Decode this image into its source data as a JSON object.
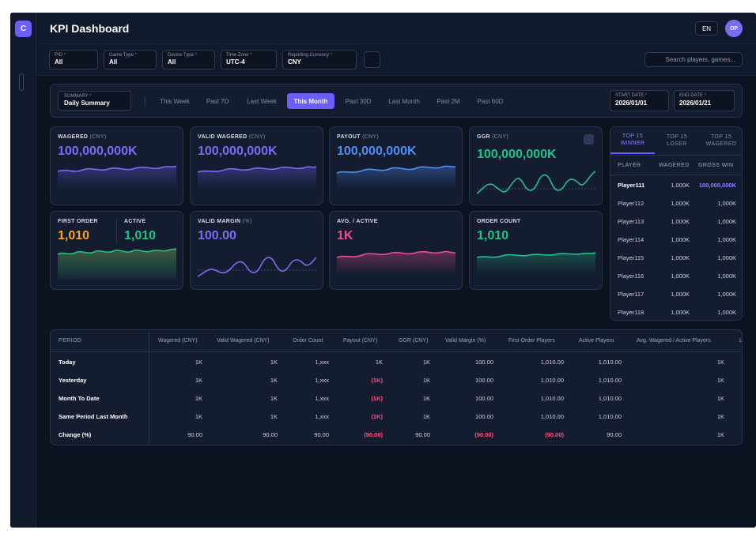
{
  "app": {
    "logo": "C",
    "title": "KPI Dashboard",
    "language": "EN",
    "user_initials": "OP"
  },
  "filters": [
    {
      "label": "PID",
      "value": "All"
    },
    {
      "label": "Game Type",
      "value": "All"
    },
    {
      "label": "Device Type",
      "value": "All"
    },
    {
      "label": "Time Zone",
      "value": "UTC-4"
    },
    {
      "label": "Reporting Currency",
      "value": "CNY"
    }
  ],
  "search": {
    "placeholder": "Search players, games..."
  },
  "period": {
    "summary_label": "SUMMARY",
    "summary_value": "Daily Summary",
    "tabs": [
      "This Week",
      "Past 7D",
      "Last Week",
      "This Month",
      "Past 30D",
      "Last Month",
      "Past 2M",
      "Past 60D"
    ],
    "active_tab": "This Month",
    "start_label": "START DATE",
    "start_value": "2026/01/01",
    "end_label": "END DATE",
    "end_value": "2026/01/21"
  },
  "cards": {
    "wagered": {
      "label": "WAGERED",
      "unit": "(CNY)",
      "value": "100,000,000K",
      "color": "#7b6cf6"
    },
    "valid_wagered": {
      "label": "VALID WAGERED",
      "unit": "(CNY)",
      "value": "100,000,000K",
      "color": "#7b6cf6"
    },
    "payout": {
      "label": "PAYOUT",
      "unit": "(CNY)",
      "value": "100,000,000K",
      "color": "#4f8ef7"
    },
    "ggr": {
      "label": "GGR",
      "unit": "(CNY)",
      "value": "100,000,000K",
      "color": "#22c08a"
    },
    "first_order": {
      "label": "FIRST ORDER",
      "value": "1,010",
      "color": "#f5a524"
    },
    "active": {
      "label": "ACTIVE",
      "value": "1,010",
      "color": "#22c08a"
    },
    "valid_margin": {
      "label": "VALID MARGIN",
      "unit": "(%)",
      "value": "100.00",
      "color": "#7b6cf6"
    },
    "avg_active": {
      "label": "AVG. / ACTIVE",
      "value": "1K",
      "color": "#ec4f8a"
    },
    "order_count": {
      "label": "ORDER COUNT",
      "value": "1,010",
      "color": "#22c08a"
    }
  },
  "top15": {
    "tabs": [
      {
        "line1": "TOP 15",
        "line2": "WINNER"
      },
      {
        "line1": "TOP 15",
        "line2": "LOSER"
      },
      {
        "line1": "TOP 15",
        "line2": "WAGERED"
      }
    ],
    "columns": [
      "PLAYER",
      "WAGERED",
      "GROSS WIN"
    ],
    "rows": [
      {
        "player": "Player111",
        "wagered": "1,000K",
        "gross_win": "100,000,000K"
      },
      {
        "player": "Player112",
        "wagered": "1,000K",
        "gross_win": "1,000K"
      },
      {
        "player": "Player113",
        "wagered": "1,000K",
        "gross_win": "1,000K"
      },
      {
        "player": "Player114",
        "wagered": "1,000K",
        "gross_win": "1,000K"
      },
      {
        "player": "Player115",
        "wagered": "1,000K",
        "gross_win": "1,000K"
      },
      {
        "player": "Player116",
        "wagered": "1,000K",
        "gross_win": "1,000K"
      },
      {
        "player": "Player117",
        "wagered": "1,000K",
        "gross_win": "1,000K"
      },
      {
        "player": "Player118",
        "wagered": "1,000K",
        "gross_win": "1,000K"
      }
    ]
  },
  "table": {
    "columns": [
      "PERIOD",
      "Wagered (CNY)",
      "Valid Wagered (CNY)",
      "Order Count",
      "Payout (CNY)",
      "GGR (CNY)",
      "Valid Margin (%)",
      "First Order Players",
      "Active Players",
      "Avg. Wagered / Active Players",
      "L"
    ],
    "rows": [
      {
        "period": "Today",
        "cells": [
          "1K",
          "1K",
          "1,xxx",
          "1K",
          "1K",
          "100.00",
          "1,010.00",
          "1,010.00",
          "1K"
        ]
      },
      {
        "period": "Yesterday",
        "cells": [
          "1K",
          "1K",
          "1,xxx",
          "(1K)",
          "1K",
          "100.00",
          "1,010.00",
          "1,010.00",
          "1K"
        ]
      },
      {
        "period": "Month To Date",
        "cells": [
          "1K",
          "1K",
          "1,xxx",
          "(1K)",
          "1K",
          "100.00",
          "1,010.00",
          "1,010.00",
          "1K"
        ]
      },
      {
        "period": "Same Period Last Month",
        "cells": [
          "1K",
          "1K",
          "1,xxx",
          "(1K)",
          "1K",
          "100.00",
          "1,010.00",
          "1,010.00",
          "1K"
        ]
      },
      {
        "period": "Change (%)",
        "cells": [
          "90.00",
          "90.00",
          "90.00",
          "(90.00)",
          "90.00",
          "(90.00)",
          "(90.00)",
          "90.00",
          "1K"
        ]
      }
    ]
  }
}
